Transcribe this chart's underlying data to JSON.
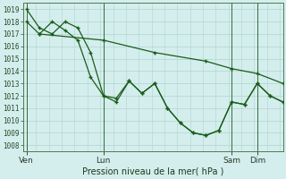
{
  "title": "Pression niveau de la mer( hPa )",
  "bg_color": "#d4eeed",
  "grid_color": "#b0d4d0",
  "line_color": "#1a5c1a",
  "ylim": [
    1007.5,
    1019.5
  ],
  "yticks": [
    1008,
    1009,
    1010,
    1011,
    1012,
    1013,
    1014,
    1015,
    1016,
    1017,
    1018,
    1019
  ],
  "xtick_labels": [
    "Ven",
    "Lun",
    "Sam",
    "Dim"
  ],
  "xtick_positions": [
    0,
    12,
    32,
    36
  ],
  "vline_positions": [
    0,
    12,
    32,
    36
  ],
  "xlim": [
    -0.5,
    40
  ],
  "line1_x": [
    0,
    2,
    4,
    6,
    8,
    10,
    12,
    14,
    16,
    18,
    20,
    22,
    24,
    26,
    28,
    30,
    32,
    34,
    36,
    38,
    40
  ],
  "line1_y": [
    1019.0,
    1017.5,
    1017.0,
    1018.0,
    1017.5,
    1015.5,
    1012.0,
    1011.5,
    1013.2,
    1012.2,
    1013.0,
    1011.0,
    1009.8,
    1009.0,
    1008.8,
    1009.2,
    1011.5,
    1011.3,
    1013.0,
    1012.0,
    1011.5
  ],
  "line2_x": [
    2,
    4,
    6,
    8,
    10,
    12,
    14,
    16,
    18,
    20,
    22,
    24,
    26,
    28,
    30,
    32,
    34,
    36,
    38,
    40
  ],
  "line2_y": [
    1017.0,
    1018.0,
    1017.3,
    1016.5,
    1013.5,
    1012.0,
    1011.8,
    1013.2,
    1012.2,
    1013.0,
    1011.0,
    1009.8,
    1009.0,
    1008.8,
    1009.2,
    1011.5,
    1011.3,
    1013.0,
    1012.0,
    1011.5
  ],
  "line3_x": [
    0,
    2,
    12,
    20,
    28,
    32,
    36,
    40
  ],
  "line3_y": [
    1018.0,
    1017.0,
    1016.5,
    1015.5,
    1014.8,
    1014.2,
    1013.8,
    1013.0
  ]
}
